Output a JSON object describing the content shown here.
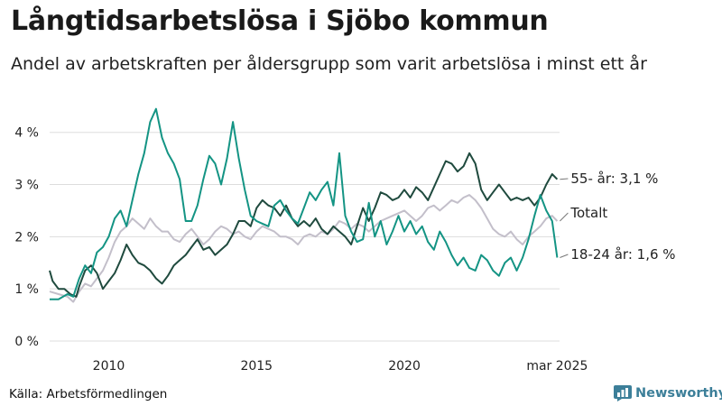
{
  "title": "Långtidsarbetslösa i Sjöbo kommun",
  "subtitle": "Andel av arbetskraften per åldersgrupp som varit arbetslösa i minst ett år",
  "source": "Källa: Arbetsförmedlingen",
  "brand": "Newsworthy",
  "colors": {
    "age55": "#1f4a3e",
    "total": "#c3bfca",
    "age18": "#149484",
    "grid": "#dddddd",
    "brand": "#3c7f99"
  },
  "chart_data": {
    "type": "line",
    "x_unit": "year",
    "xlim": [
      2008.0,
      2025.25
    ],
    "ylim": [
      0,
      4.6
    ],
    "y_ticks": [
      0,
      1,
      2,
      3,
      4
    ],
    "y_tick_labels": [
      "0 %",
      "1 %",
      "2 %",
      "3 %",
      "4 %"
    ],
    "x_ticks": [
      2010,
      2015,
      2020,
      2025.17
    ],
    "x_tick_labels": [
      "2010",
      "2015",
      "2020",
      "mar 2025"
    ],
    "grid": "horizontal",
    "series": [
      {
        "name": "Totalt",
        "label": "Totalt",
        "color_key": "total",
        "points": [
          [
            2008.0,
            0.95
          ],
          [
            2008.3,
            0.9
          ],
          [
            2008.6,
            0.85
          ],
          [
            2008.8,
            0.75
          ],
          [
            2009.0,
            0.95
          ],
          [
            2009.2,
            1.1
          ],
          [
            2009.4,
            1.05
          ],
          [
            2009.6,
            1.2
          ],
          [
            2009.8,
            1.35
          ],
          [
            2010.0,
            1.6
          ],
          [
            2010.2,
            1.9
          ],
          [
            2010.4,
            2.1
          ],
          [
            2010.6,
            2.2
          ],
          [
            2010.8,
            2.35
          ],
          [
            2011.0,
            2.25
          ],
          [
            2011.2,
            2.15
          ],
          [
            2011.4,
            2.35
          ],
          [
            2011.6,
            2.2
          ],
          [
            2011.8,
            2.1
          ],
          [
            2012.0,
            2.1
          ],
          [
            2012.2,
            1.95
          ],
          [
            2012.4,
            1.9
          ],
          [
            2012.6,
            2.05
          ],
          [
            2012.8,
            2.15
          ],
          [
            2013.0,
            2.0
          ],
          [
            2013.2,
            1.85
          ],
          [
            2013.4,
            1.95
          ],
          [
            2013.6,
            2.1
          ],
          [
            2013.8,
            2.2
          ],
          [
            2014.0,
            2.15
          ],
          [
            2014.2,
            2.05
          ],
          [
            2014.4,
            2.1
          ],
          [
            2014.6,
            2.0
          ],
          [
            2014.8,
            1.95
          ],
          [
            2015.0,
            2.1
          ],
          [
            2015.2,
            2.2
          ],
          [
            2015.4,
            2.15
          ],
          [
            2015.6,
            2.1
          ],
          [
            2015.8,
            2.0
          ],
          [
            2016.0,
            2.0
          ],
          [
            2016.2,
            1.95
          ],
          [
            2016.4,
            1.85
          ],
          [
            2016.6,
            2.0
          ],
          [
            2016.8,
            2.05
          ],
          [
            2017.0,
            2.0
          ],
          [
            2017.2,
            2.1
          ],
          [
            2017.4,
            2.05
          ],
          [
            2017.6,
            2.15
          ],
          [
            2017.8,
            2.3
          ],
          [
            2018.0,
            2.25
          ],
          [
            2018.2,
            2.15
          ],
          [
            2018.4,
            2.25
          ],
          [
            2018.6,
            2.2
          ],
          [
            2018.8,
            2.1
          ],
          [
            2019.0,
            2.2
          ],
          [
            2019.2,
            2.3
          ],
          [
            2019.4,
            2.35
          ],
          [
            2019.6,
            2.4
          ],
          [
            2019.8,
            2.45
          ],
          [
            2020.0,
            2.5
          ],
          [
            2020.2,
            2.4
          ],
          [
            2020.4,
            2.3
          ],
          [
            2020.6,
            2.4
          ],
          [
            2020.8,
            2.55
          ],
          [
            2021.0,
            2.6
          ],
          [
            2021.2,
            2.5
          ],
          [
            2021.4,
            2.6
          ],
          [
            2021.6,
            2.7
          ],
          [
            2021.8,
            2.65
          ],
          [
            2022.0,
            2.75
          ],
          [
            2022.2,
            2.8
          ],
          [
            2022.4,
            2.7
          ],
          [
            2022.6,
            2.55
          ],
          [
            2022.8,
            2.35
          ],
          [
            2023.0,
            2.15
          ],
          [
            2023.2,
            2.05
          ],
          [
            2023.4,
            2.0
          ],
          [
            2023.6,
            2.1
          ],
          [
            2023.8,
            1.95
          ],
          [
            2024.0,
            1.85
          ],
          [
            2024.2,
            2.0
          ],
          [
            2024.4,
            2.1
          ],
          [
            2024.6,
            2.2
          ],
          [
            2024.8,
            2.35
          ],
          [
            2025.0,
            2.4
          ],
          [
            2025.17,
            2.3
          ]
        ]
      },
      {
        "name": "55- år",
        "label": "55- år: 3,1 %",
        "color_key": "age55",
        "points": [
          [
            2008.0,
            1.35
          ],
          [
            2008.1,
            1.15
          ],
          [
            2008.3,
            1.0
          ],
          [
            2008.5,
            1.0
          ],
          [
            2008.7,
            0.9
          ],
          [
            2008.9,
            0.85
          ],
          [
            2009.0,
            1.05
          ],
          [
            2009.2,
            1.35
          ],
          [
            2009.4,
            1.45
          ],
          [
            2009.6,
            1.3
          ],
          [
            2009.8,
            1.0
          ],
          [
            2010.0,
            1.15
          ],
          [
            2010.2,
            1.3
          ],
          [
            2010.4,
            1.55
          ],
          [
            2010.6,
            1.85
          ],
          [
            2010.8,
            1.65
          ],
          [
            2011.0,
            1.5
          ],
          [
            2011.2,
            1.45
          ],
          [
            2011.4,
            1.35
          ],
          [
            2011.6,
            1.2
          ],
          [
            2011.8,
            1.1
          ],
          [
            2012.0,
            1.25
          ],
          [
            2012.2,
            1.45
          ],
          [
            2012.4,
            1.55
          ],
          [
            2012.6,
            1.65
          ],
          [
            2012.8,
            1.8
          ],
          [
            2013.0,
            1.95
          ],
          [
            2013.2,
            1.75
          ],
          [
            2013.4,
            1.8
          ],
          [
            2013.6,
            1.65
          ],
          [
            2013.8,
            1.75
          ],
          [
            2014.0,
            1.85
          ],
          [
            2014.2,
            2.05
          ],
          [
            2014.4,
            2.3
          ],
          [
            2014.6,
            2.3
          ],
          [
            2014.8,
            2.2
          ],
          [
            2015.0,
            2.55
          ],
          [
            2015.2,
            2.7
          ],
          [
            2015.4,
            2.6
          ],
          [
            2015.6,
            2.55
          ],
          [
            2015.8,
            2.4
          ],
          [
            2016.0,
            2.6
          ],
          [
            2016.2,
            2.35
          ],
          [
            2016.4,
            2.2
          ],
          [
            2016.6,
            2.3
          ],
          [
            2016.8,
            2.2
          ],
          [
            2017.0,
            2.35
          ],
          [
            2017.2,
            2.15
          ],
          [
            2017.4,
            2.05
          ],
          [
            2017.6,
            2.2
          ],
          [
            2017.8,
            2.1
          ],
          [
            2018.0,
            2.0
          ],
          [
            2018.2,
            1.85
          ],
          [
            2018.4,
            2.2
          ],
          [
            2018.6,
            2.55
          ],
          [
            2018.8,
            2.3
          ],
          [
            2019.0,
            2.55
          ],
          [
            2019.2,
            2.85
          ],
          [
            2019.4,
            2.8
          ],
          [
            2019.6,
            2.7
          ],
          [
            2019.8,
            2.75
          ],
          [
            2020.0,
            2.9
          ],
          [
            2020.2,
            2.75
          ],
          [
            2020.4,
            2.95
          ],
          [
            2020.6,
            2.85
          ],
          [
            2020.8,
            2.7
          ],
          [
            2021.0,
            2.95
          ],
          [
            2021.2,
            3.2
          ],
          [
            2021.4,
            3.45
          ],
          [
            2021.6,
            3.4
          ],
          [
            2021.8,
            3.25
          ],
          [
            2022.0,
            3.35
          ],
          [
            2022.2,
            3.6
          ],
          [
            2022.4,
            3.4
          ],
          [
            2022.6,
            2.9
          ],
          [
            2022.8,
            2.7
          ],
          [
            2023.0,
            2.85
          ],
          [
            2023.2,
            3.0
          ],
          [
            2023.4,
            2.85
          ],
          [
            2023.6,
            2.7
          ],
          [
            2023.8,
            2.75
          ],
          [
            2024.0,
            2.7
          ],
          [
            2024.2,
            2.75
          ],
          [
            2024.4,
            2.6
          ],
          [
            2024.6,
            2.75
          ],
          [
            2024.8,
            3.0
          ],
          [
            2025.0,
            3.2
          ],
          [
            2025.17,
            3.1
          ]
        ]
      },
      {
        "name": "18-24 år",
        "label": "18-24 år: 1,6 %",
        "color_key": "age18",
        "points": [
          [
            2008.0,
            0.8
          ],
          [
            2008.3,
            0.8
          ],
          [
            2008.6,
            0.9
          ],
          [
            2008.8,
            0.85
          ],
          [
            2009.0,
            1.2
          ],
          [
            2009.2,
            1.45
          ],
          [
            2009.4,
            1.3
          ],
          [
            2009.6,
            1.7
          ],
          [
            2009.8,
            1.8
          ],
          [
            2010.0,
            2.0
          ],
          [
            2010.2,
            2.35
          ],
          [
            2010.4,
            2.5
          ],
          [
            2010.6,
            2.2
          ],
          [
            2010.8,
            2.7
          ],
          [
            2011.0,
            3.2
          ],
          [
            2011.2,
            3.6
          ],
          [
            2011.4,
            4.2
          ],
          [
            2011.6,
            4.45
          ],
          [
            2011.8,
            3.9
          ],
          [
            2012.0,
            3.6
          ],
          [
            2012.2,
            3.4
          ],
          [
            2012.4,
            3.1
          ],
          [
            2012.6,
            2.3
          ],
          [
            2012.8,
            2.3
          ],
          [
            2013.0,
            2.6
          ],
          [
            2013.2,
            3.1
          ],
          [
            2013.4,
            3.55
          ],
          [
            2013.6,
            3.4
          ],
          [
            2013.8,
            3.0
          ],
          [
            2014.0,
            3.5
          ],
          [
            2014.2,
            4.2
          ],
          [
            2014.4,
            3.5
          ],
          [
            2014.6,
            2.9
          ],
          [
            2014.8,
            2.4
          ],
          [
            2015.0,
            2.3
          ],
          [
            2015.2,
            2.25
          ],
          [
            2015.4,
            2.2
          ],
          [
            2015.6,
            2.6
          ],
          [
            2015.8,
            2.7
          ],
          [
            2016.0,
            2.5
          ],
          [
            2016.2,
            2.35
          ],
          [
            2016.4,
            2.25
          ],
          [
            2016.6,
            2.55
          ],
          [
            2016.8,
            2.85
          ],
          [
            2017.0,
            2.7
          ],
          [
            2017.2,
            2.9
          ],
          [
            2017.4,
            3.05
          ],
          [
            2017.6,
            2.6
          ],
          [
            2017.8,
            3.6
          ],
          [
            2018.0,
            2.4
          ],
          [
            2018.2,
            2.1
          ],
          [
            2018.4,
            1.9
          ],
          [
            2018.6,
            1.95
          ],
          [
            2018.8,
            2.65
          ],
          [
            2019.0,
            2.0
          ],
          [
            2019.2,
            2.3
          ],
          [
            2019.4,
            1.85
          ],
          [
            2019.6,
            2.1
          ],
          [
            2019.8,
            2.4
          ],
          [
            2020.0,
            2.1
          ],
          [
            2020.2,
            2.3
          ],
          [
            2020.4,
            2.05
          ],
          [
            2020.6,
            2.2
          ],
          [
            2020.8,
            1.9
          ],
          [
            2021.0,
            1.75
          ],
          [
            2021.2,
            2.1
          ],
          [
            2021.4,
            1.9
          ],
          [
            2021.6,
            1.65
          ],
          [
            2021.8,
            1.45
          ],
          [
            2022.0,
            1.6
          ],
          [
            2022.2,
            1.4
          ],
          [
            2022.4,
            1.35
          ],
          [
            2022.6,
            1.65
          ],
          [
            2022.8,
            1.55
          ],
          [
            2023.0,
            1.35
          ],
          [
            2023.2,
            1.25
          ],
          [
            2023.4,
            1.5
          ],
          [
            2023.6,
            1.6
          ],
          [
            2023.8,
            1.35
          ],
          [
            2024.0,
            1.6
          ],
          [
            2024.2,
            1.95
          ],
          [
            2024.4,
            2.4
          ],
          [
            2024.6,
            2.8
          ],
          [
            2024.8,
            2.5
          ],
          [
            2025.0,
            2.3
          ],
          [
            2025.17,
            1.6
          ]
        ]
      }
    ]
  }
}
